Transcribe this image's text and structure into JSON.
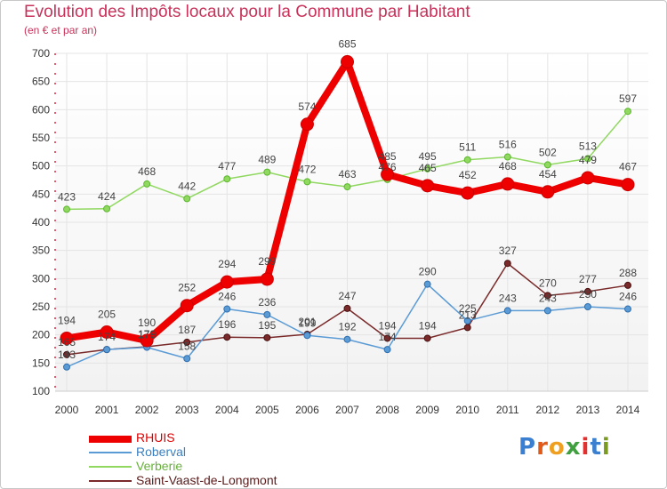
{
  "chart_data": {
    "type": "line",
    "title": "Evolution des Impôts locaux pour la Commune par Habitant",
    "subtitle": "(en € et par an)",
    "x": [
      "2000",
      "2001",
      "2002",
      "2003",
      "2004",
      "2005",
      "2006",
      "2007",
      "2008",
      "2009",
      "2010",
      "2011",
      "2012",
      "2013",
      "2014"
    ],
    "ylim": [
      100,
      700
    ],
    "yticks": [
      100,
      150,
      200,
      250,
      300,
      350,
      400,
      450,
      500,
      550,
      600,
      650,
      700
    ],
    "grid": true,
    "legend_position": "bottom-left",
    "series": [
      {
        "name": "RHUIS",
        "color": "#ee0000",
        "values": [
          194,
          205,
          190,
          252,
          294,
          299,
          574,
          685,
          485,
          465,
          452,
          468,
          454,
          479,
          467
        ]
      },
      {
        "name": "Roberval",
        "color": "#5b9bd5",
        "values": [
          143,
          174,
          178,
          158,
          246,
          236,
          199,
          192,
          174,
          290,
          225,
          243,
          243,
          250,
          246
        ]
      },
      {
        "name": "Verberie",
        "color": "#90d860",
        "values": [
          423,
          424,
          468,
          442,
          477,
          489,
          472,
          463,
          476,
          495,
          511,
          516,
          502,
          513,
          597
        ]
      },
      {
        "name": "Saint-Vaast-de-Longmont",
        "color": "#7a2a2a",
        "values": [
          165,
          174,
          179,
          187,
          196,
          195,
          201,
          247,
          194,
          194,
          213,
          327,
          270,
          277,
          288
        ]
      }
    ]
  },
  "logo": {
    "text": "Proxiti"
  }
}
